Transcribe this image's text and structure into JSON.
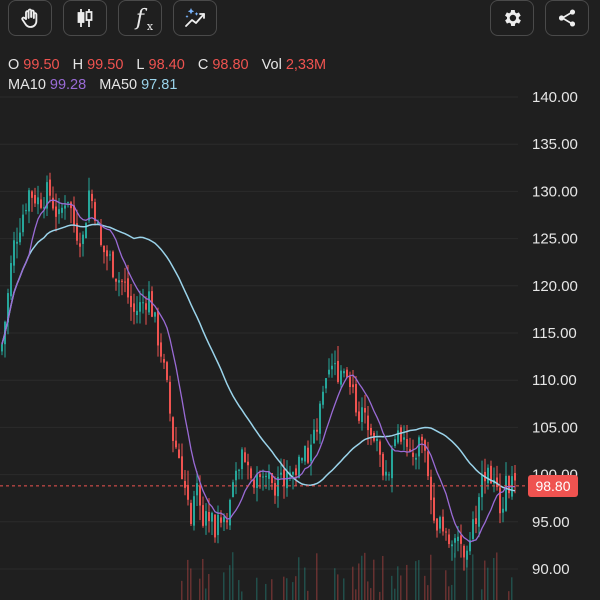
{
  "toolbar": {
    "buttons": [
      {
        "name": "hand-cursor-icon"
      },
      {
        "name": "candlestick-chart-icon"
      },
      {
        "name": "indicators-fx-icon",
        "text": "f",
        "sub": "x"
      },
      {
        "name": "drawing-tools-icon"
      }
    ],
    "right_buttons": [
      {
        "name": "gear-icon"
      },
      {
        "name": "share-icon"
      }
    ]
  },
  "legend": {
    "ohlc": [
      {
        "key": "O",
        "value": "99.50"
      },
      {
        "key": "H",
        "value": "99.50"
      },
      {
        "key": "L",
        "value": "98.40"
      },
      {
        "key": "C",
        "value": "98.80"
      },
      {
        "key": "Vol",
        "value": "2,33M"
      }
    ],
    "ma": [
      {
        "key": "MA10",
        "value": "99.28"
      },
      {
        "key": "MA50",
        "value": "97.81"
      }
    ]
  },
  "colors": {
    "background": "#1f1f1f",
    "up": "#26a69a",
    "down": "#ef5350",
    "ohlc_value": "#ef5350",
    "ma10": "#9a6bd6",
    "ma50": "#9ad3ea",
    "grid": "#2b2b2b",
    "axis_text": "#e6e6e6"
  },
  "chart_data": {
    "type": "candlestick",
    "ylim": [
      87.5,
      142.5
    ],
    "y_ticks": [
      "140.00",
      "135.00",
      "130.00",
      "125.00",
      "120.00",
      "115.00",
      "110.00",
      "105.00",
      "100.00",
      "95.00",
      "90.00"
    ],
    "y_tick_values": [
      140,
      135,
      130,
      125,
      120,
      115,
      110,
      105,
      100,
      95,
      90
    ],
    "last_price": 98.8,
    "last_price_label": "98.80",
    "close_path": [
      [
        0,
        113
      ],
      [
        6,
        118
      ],
      [
        12,
        124
      ],
      [
        20,
        127
      ],
      [
        28,
        130
      ],
      [
        38,
        129
      ],
      [
        48,
        130
      ],
      [
        58,
        127
      ],
      [
        66,
        130
      ],
      [
        74,
        126
      ],
      [
        82,
        125
      ],
      [
        88,
        130
      ],
      [
        94,
        128
      ],
      [
        100,
        124
      ],
      [
        108,
        123
      ],
      [
        116,
        121
      ],
      [
        124,
        120
      ],
      [
        132,
        117
      ],
      [
        140,
        118
      ],
      [
        148,
        119
      ],
      [
        154,
        116
      ],
      [
        160,
        113
      ],
      [
        166,
        109
      ],
      [
        172,
        104
      ],
      [
        178,
        102
      ],
      [
        184,
        99
      ],
      [
        190,
        95
      ],
      [
        196,
        98
      ],
      [
        202,
        95
      ],
      [
        208,
        96
      ],
      [
        214,
        94
      ],
      [
        220,
        95
      ],
      [
        226,
        96
      ],
      [
        232,
        98
      ],
      [
        238,
        101
      ],
      [
        244,
        102
      ],
      [
        250,
        100
      ],
      [
        258,
        99
      ],
      [
        266,
        100
      ],
      [
        274,
        99
      ],
      [
        282,
        99
      ],
      [
        290,
        100
      ],
      [
        298,
        101
      ],
      [
        306,
        102
      ],
      [
        314,
        104
      ],
      [
        322,
        108
      ],
      [
        330,
        111
      ],
      [
        338,
        111
      ],
      [
        344,
        112
      ],
      [
        350,
        110
      ],
      [
        356,
        107
      ],
      [
        362,
        106
      ],
      [
        368,
        106
      ],
      [
        374,
        104
      ],
      [
        380,
        101
      ],
      [
        386,
        100
      ],
      [
        392,
        103
      ],
      [
        398,
        104
      ],
      [
        404,
        103
      ],
      [
        410,
        101
      ],
      [
        416,
        103
      ],
      [
        422,
        104
      ],
      [
        428,
        98
      ],
      [
        434,
        96
      ],
      [
        440,
        94
      ],
      [
        446,
        93
      ],
      [
        452,
        94
      ],
      [
        458,
        92
      ],
      [
        464,
        91
      ],
      [
        470,
        95
      ],
      [
        476,
        96
      ],
      [
        482,
        100
      ],
      [
        488,
        101
      ],
      [
        494,
        98
      ],
      [
        500,
        97
      ],
      [
        506,
        99
      ],
      [
        512,
        98.8
      ]
    ]
  }
}
